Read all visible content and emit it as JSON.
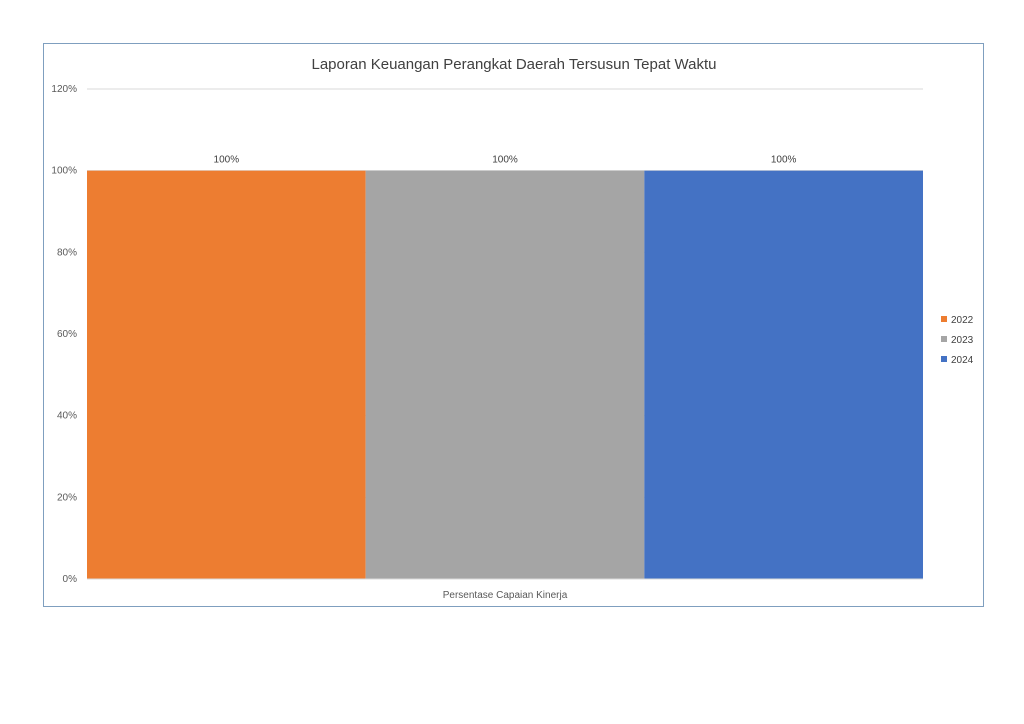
{
  "chart_data": {
    "type": "bar",
    "title": "Laporan Keuangan Perangkat Daerah Tersusun Tepat Waktu",
    "categories": [
      "Persentase Capaian Kinerja"
    ],
    "series": [
      {
        "name": "2022",
        "values": [
          100
        ],
        "label": "100%",
        "color": "#ED7D31"
      },
      {
        "name": "2023",
        "values": [
          100
        ],
        "label": "100%",
        "color": "#A5A5A5"
      },
      {
        "name": "2024",
        "values": [
          100
        ],
        "label": "100%",
        "color": "#4472C4"
      }
    ],
    "yticks": [
      0,
      20,
      40,
      60,
      80,
      100,
      120
    ],
    "ytick_labels": [
      "0%",
      "20%",
      "40%",
      "60%",
      "80%",
      "100%",
      "120%"
    ],
    "ylim": [
      0,
      120
    ],
    "grid": true,
    "legend": "right"
  }
}
